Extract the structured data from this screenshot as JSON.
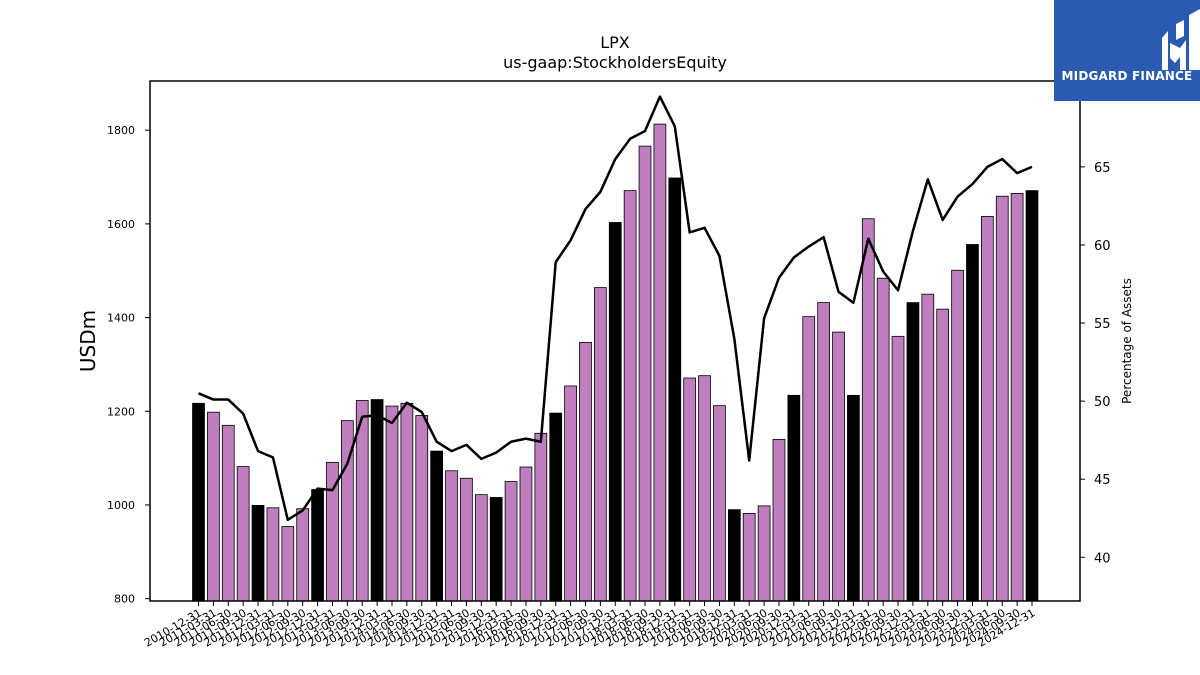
{
  "brand": {
    "name": "MIDGARD FINANCE",
    "bg_color": "#2a5bb0",
    "icon": "midgard-logo-icon"
  },
  "chart_data": {
    "type": "bar",
    "title": "LPX",
    "subtitle": "us-gaap:StockholdersEquity",
    "ylabel": "USDm",
    "y2label": "Percentage of Assets",
    "ylim": [
      795,
      1905
    ],
    "y2lim": [
      37.2,
      70.5
    ],
    "yticks": [
      800,
      1000,
      1200,
      1400,
      1600,
      1800
    ],
    "y2ticks": [
      40,
      45,
      50,
      55,
      60,
      65
    ],
    "grid": false,
    "colors": {
      "year_end_bar": "#000000",
      "quarter_bar": "#bf7fbf",
      "line": "#000000"
    },
    "categories": [
      "2010-12-31",
      "2011-03-31",
      "2011-06-30",
      "2011-09-30",
      "2011-12-31",
      "2012-03-31",
      "2012-06-30",
      "2012-09-30",
      "2012-12-31",
      "2013-03-31",
      "2013-06-30",
      "2013-09-30",
      "2013-12-31",
      "2014-03-31",
      "2014-06-30",
      "2014-09-30",
      "2014-12-31",
      "2015-03-31",
      "2015-06-30",
      "2015-09-30",
      "2015-12-31",
      "2016-03-31",
      "2016-06-30",
      "2016-09-30",
      "2016-12-31",
      "2017-03-31",
      "2017-06-30",
      "2017-09-30",
      "2017-12-31",
      "2018-03-31",
      "2018-06-30",
      "2018-09-30",
      "2018-12-31",
      "2019-03-31",
      "2019-06-30",
      "2019-09-30",
      "2019-12-31",
      "2020-03-31",
      "2020-06-30",
      "2020-09-30",
      "2020-12-31",
      "2021-03-31",
      "2021-06-30",
      "2021-09-30",
      "2021-12-31",
      "2022-03-31",
      "2022-06-30",
      "2022-09-30",
      "2022-12-31",
      "2023-03-31",
      "2023-06-30",
      "2023-09-30",
      "2023-12-31",
      "2024-03-31",
      "2024-06-30",
      "2024-09-30",
      "2024-12-31"
    ],
    "series": [
      {
        "kind": "bar",
        "axis": "left",
        "values": [
          1217,
          1198,
          1170,
          1082,
          999,
          994,
          954,
          992,
          1033,
          1091,
          1180,
          1223,
          1225,
          1211,
          1217,
          1191,
          1115,
          1073,
          1057,
          1022,
          1016,
          1050,
          1081,
          1153,
          1196,
          1254,
          1347,
          1464,
          1603,
          1671,
          1766,
          1813,
          1698,
          1271,
          1276,
          1212,
          990,
          982,
          998,
          1140,
          1234,
          1402,
          1432,
          1369,
          1234,
          1611,
          1484,
          1360,
          1432,
          1450,
          1418,
          1501,
          1556,
          1616,
          1659,
          1665,
          1671
        ]
      },
      {
        "kind": "line",
        "axis": "right",
        "values": [
          50.5,
          50.1,
          50.1,
          49.2,
          46.8,
          46.4,
          42.4,
          43.0,
          44.4,
          44.3,
          46.0,
          49.0,
          49.1,
          48.6,
          49.9,
          49.3,
          47.4,
          46.8,
          47.2,
          46.3,
          46.7,
          47.4,
          47.6,
          47.4,
          58.9,
          60.3,
          62.3,
          63.4,
          65.5,
          66.8,
          67.3,
          69.5,
          67.6,
          60.8,
          61.1,
          59.3,
          54.0,
          46.2,
          55.3,
          57.9,
          59.2,
          59.9,
          60.5,
          57.0,
          56.3,
          60.4,
          58.3,
          57.1,
          60.9,
          64.2,
          61.6,
          63.1,
          63.9,
          65.0,
          65.5,
          64.6,
          65.0
        ]
      }
    ]
  }
}
